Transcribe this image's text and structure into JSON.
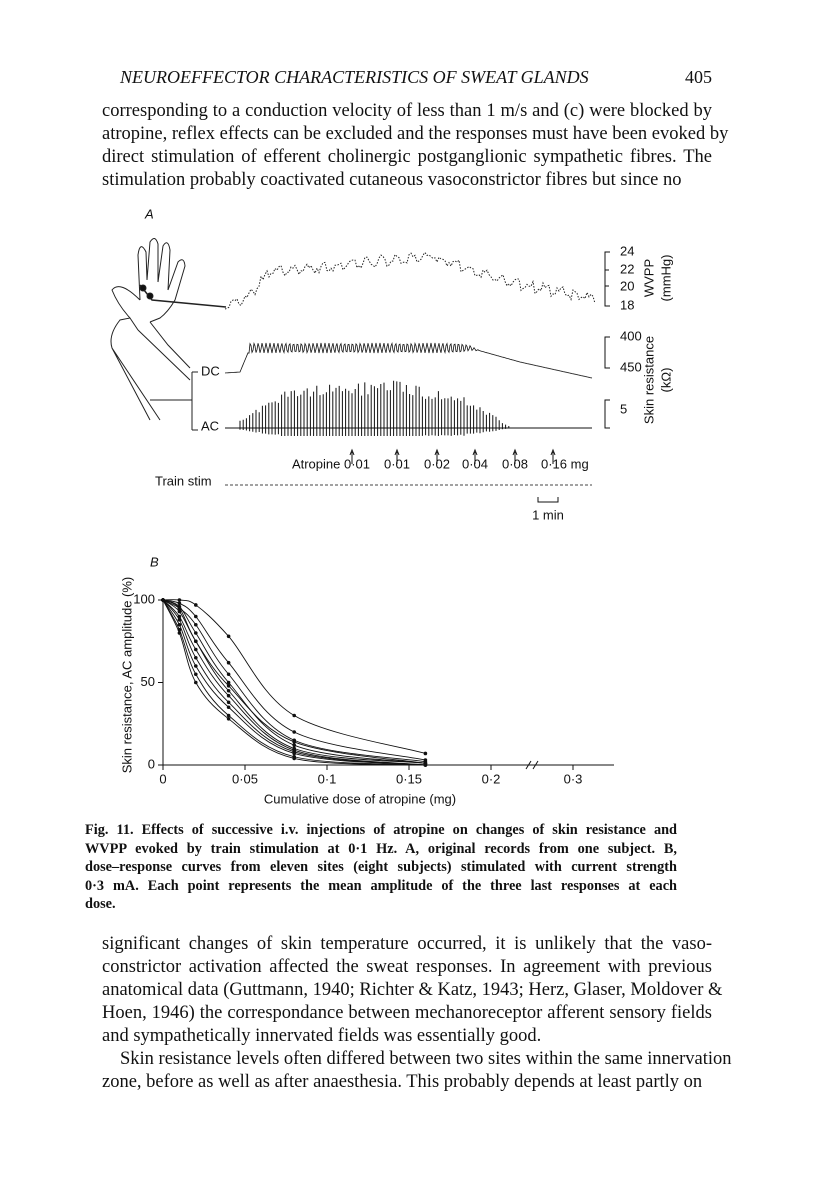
{
  "header": {
    "title": "NEUROEFFECTOR CHARACTERISTICS OF SWEAT GLANDS",
    "page_number": "405"
  },
  "body": {
    "paragraph_1": [
      "corresponding to a conduction velocity of less than 1 m/s and (c) were blocked by",
      "atropine, reflex effects can be excluded and the responses must have been evoked by",
      "direct stimulation of efferent cholinergic postganglionic sympathetic fibres. The",
      "stimulation probably coactivated cutaneous vasoconstrictor fibres but since no"
    ],
    "paragraph_2": [
      "significant changes of skin temperature occurred, it is unlikely that the vaso-",
      "constrictor activation affected the sweat responses. In agreement with previous",
      "anatomical data (Guttmann, 1940; Richter & Katz, 1943; Herz, Glaser, Moldover &",
      "Hoen, 1946) the correspondance between mechanoreceptor afferent sensory fields",
      "and sympathetically innervated fields was essentially good."
    ],
    "paragraph_3": [
      "Skin resistance levels often differed between two sites within the same innervation",
      "zone, before as well as after anaesthesia. This probably depends at least partly on"
    ]
  },
  "figure": {
    "panel_a": {
      "label": "A",
      "wvpp_ticks": [
        "24",
        "22",
        "20",
        "18"
      ],
      "wvpp_label": "WVPP",
      "wvpp_unit": "(mmHg)",
      "resistance_ticks": [
        "400",
        "450"
      ],
      "ac_scale": "5",
      "resistance_label": "Skin resistance",
      "resistance_unit": "(kΩ)",
      "dc": "DC",
      "ac": "AC",
      "doses": [
        "Atropine 0·01",
        "0·01",
        "0·02",
        "0·04",
        "0·08",
        "0·16 mg"
      ],
      "train_stim": "Train stim",
      "time_bar": "1 min"
    },
    "caption": [
      "Fig. 11. Effects of successive i.v. injections of atropine on changes of skin resistance and",
      "WVPP evoked by train stimulation at 0·1 Hz. A, original records from one subject. B,",
      "dose–response curves from eleven sites (eight subjects) stimulated with current strength",
      "0·3 mA. Each point represents the mean amplitude of the three last responses at each",
      "dose."
    ]
  },
  "chart_data": {
    "type": "line",
    "panel_label": "B",
    "x_label": "Cumulative dose of atropine (mg)",
    "y_label": "Skin resistance, AC amplitude (%)",
    "x": [
      0,
      0.01,
      0.02,
      0.04,
      0.08,
      0.16
    ],
    "series": [
      {
        "color": "#111111",
        "values": [
          100,
          100,
          97,
          78,
          30,
          7
        ]
      },
      {
        "color": "#111111",
        "values": [
          100,
          98,
          90,
          62,
          20,
          3
        ]
      },
      {
        "color": "#111111",
        "values": [
          100,
          95,
          85,
          55,
          15,
          2
        ]
      },
      {
        "color": "#111111",
        "values": [
          100,
          96,
          80,
          50,
          12,
          1
        ]
      },
      {
        "color": "#111111",
        "values": [
          100,
          93,
          75,
          45,
          10,
          1
        ]
      },
      {
        "color": "#111111",
        "values": [
          100,
          90,
          70,
          42,
          9,
          0
        ]
      },
      {
        "color": "#111111",
        "values": [
          100,
          88,
          65,
          38,
          8,
          0
        ]
      },
      {
        "color": "#111111",
        "values": [
          100,
          85,
          60,
          35,
          7,
          0
        ]
      },
      {
        "color": "#111111",
        "values": [
          100,
          82,
          55,
          30,
          5,
          0
        ]
      },
      {
        "color": "#111111",
        "values": [
          100,
          80,
          50,
          28,
          4,
          0
        ]
      },
      {
        "color": "#111111",
        "values": [
          100,
          95,
          75,
          48,
          14,
          1
        ]
      }
    ],
    "xlim": [
      0,
      0.35
    ],
    "xticks": [
      0,
      {
        "value": 0.05,
        "label": "0·05"
      },
      {
        "value": 0.1,
        "label": "0·1"
      },
      {
        "value": 0.15,
        "label": "0·15"
      },
      {
        "value": 0.2,
        "label": "0·2"
      },
      {
        "value": 0.3,
        "label": "0·3"
      }
    ],
    "ylim": [
      0,
      100
    ],
    "yticks": [
      0,
      50,
      100
    ]
  }
}
